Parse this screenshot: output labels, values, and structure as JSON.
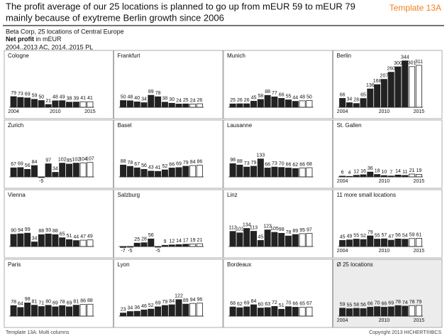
{
  "title": "The profit average of our 25 locations is planned to go up from mEUR 59 to mEUR 79 mainly because of exytreme Berlin growth since 2006",
  "template": "Template 13A",
  "company": "Beta Corp, 25 locations of Central Europe",
  "measure": "Net profit",
  "unit": "in mEUR",
  "period": "2004..2013 AC, 2014..2015 PL",
  "footer_left": "Template 13A: Multi columns",
  "footer_right": "Copyright 2013 HICHERT®IBCS",
  "chart_data": [
    {
      "type": "bar",
      "title": "Cologne",
      "categories": [
        "2004",
        null,
        null,
        null,
        null,
        null,
        "2010",
        null,
        null,
        null,
        null,
        "2015"
      ],
      "values": [
        79,
        73,
        69,
        59,
        50,
        21,
        48,
        49,
        38,
        39,
        41,
        41
      ],
      "colors": [
        "#222",
        "#222",
        "#222",
        "#222",
        "#222",
        "#222",
        "#222",
        "#222",
        "#222",
        "#222",
        "#fff",
        "#fff"
      ]
    },
    {
      "type": "bar",
      "title": "Frankfurt",
      "categories": [
        null,
        null,
        null,
        null,
        null,
        null,
        null,
        null,
        null,
        null,
        null,
        null
      ],
      "values": [
        50,
        48,
        40,
        34,
        89,
        78,
        38,
        30,
        24,
        25,
        24,
        26
      ],
      "colors": [
        "#222",
        "#222",
        "#222",
        "#222",
        "#222",
        "#222",
        "#222",
        "#222",
        "#222",
        "#222",
        "#fff",
        "#fff"
      ]
    },
    {
      "type": "bar",
      "title": "Munich",
      "categories": [
        null,
        null,
        null,
        null,
        null,
        null,
        null,
        null,
        null,
        null,
        null,
        null
      ],
      "values": [
        25,
        26,
        26,
        45,
        58,
        88,
        77,
        66,
        55,
        44,
        48,
        50
      ],
      "colors": [
        "#222",
        "#222",
        "#222",
        "#222",
        "#222",
        "#222",
        "#222",
        "#222",
        "#222",
        "#222",
        "#fff",
        "#fff"
      ]
    },
    {
      "type": "bar",
      "title": "Berlin",
      "categories": [
        "2004",
        null,
        null,
        null,
        null,
        null,
        "2010",
        null,
        null,
        null,
        null,
        "2015"
      ],
      "values": [
        66,
        34,
        28,
        65,
        136,
        168,
        207,
        260,
        300,
        344,
        301,
        311
      ],
      "colors": [
        "#222",
        "#222",
        "#222",
        "#222",
        "#222",
        "#222",
        "#222",
        "#222",
        "#222",
        "#222",
        "#fff",
        "#fff"
      ]
    },
    {
      "type": "bar",
      "title": "Zurich",
      "categories": [
        null,
        null,
        null,
        null,
        null,
        null,
        null,
        null,
        null,
        null,
        null,
        null
      ],
      "values": [
        67,
        69,
        56,
        84,
        -5,
        97,
        34,
        102,
        95,
        102,
        104,
        107
      ],
      "colors": [
        "#222",
        "#222",
        "#222",
        "#222",
        "#222",
        "#222",
        "#222",
        "#222",
        "#222",
        "#222",
        "#fff",
        "#fff"
      ]
    },
    {
      "type": "bar",
      "title": "Basel",
      "categories": [
        null,
        null,
        null,
        null,
        null,
        null,
        null,
        null,
        null,
        null,
        null,
        null
      ],
      "values": [
        88,
        78,
        67,
        56,
        43,
        41,
        52,
        66,
        69,
        79,
        84,
        86
      ],
      "colors": [
        "#222",
        "#222",
        "#222",
        "#222",
        "#222",
        "#222",
        "#222",
        "#222",
        "#222",
        "#222",
        "#fff",
        "#fff"
      ]
    },
    {
      "type": "bar",
      "title": "Lausanne",
      "categories": [
        null,
        null,
        null,
        null,
        null,
        null,
        null,
        null,
        null,
        null,
        null,
        null
      ],
      "values": [
        98,
        88,
        73,
        79,
        133,
        66,
        73,
        70,
        66,
        62,
        66,
        68
      ],
      "colors": [
        "#222",
        "#222",
        "#222",
        "#222",
        "#222",
        "#222",
        "#222",
        "#222",
        "#222",
        "#222",
        "#fff",
        "#fff"
      ]
    },
    {
      "type": "bar",
      "title": "St. Gallen",
      "categories": [
        "2004",
        null,
        null,
        null,
        null,
        null,
        "2010",
        null,
        null,
        null,
        null,
        "2015"
      ],
      "values": [
        6,
        4,
        12,
        16,
        36,
        18,
        10,
        7,
        14,
        11,
        21,
        19
      ],
      "colors": [
        "#222",
        "#222",
        "#222",
        "#222",
        "#222",
        "#222",
        "#222",
        "#222",
        "#222",
        "#222",
        "#fff",
        "#fff"
      ]
    },
    {
      "type": "bar",
      "title": "Vienna",
      "categories": [
        null,
        null,
        null,
        null,
        null,
        null,
        null,
        null,
        null,
        null,
        null,
        null
      ],
      "values": [
        90,
        94,
        99,
        34,
        88,
        93,
        88,
        65,
        51,
        44,
        47,
        49
      ],
      "colors": [
        "#222",
        "#222",
        "#222",
        "#222",
        "#222",
        "#222",
        "#222",
        "#222",
        "#222",
        "#222",
        "#fff",
        "#fff"
      ]
    },
    {
      "type": "bar",
      "title": "Salzburg",
      "categories": [
        null,
        null,
        null,
        null,
        null,
        null,
        null,
        null,
        null,
        null,
        null,
        null
      ],
      "values": [
        -7,
        -5,
        25,
        28,
        56,
        -5,
        9,
        12,
        14,
        17,
        19,
        21
      ],
      "colors": [
        "#222",
        "#222",
        "#222",
        "#222",
        "#222",
        "#222",
        "#222",
        "#222",
        "#222",
        "#222",
        "#fff",
        "#fff"
      ]
    },
    {
      "type": "bar",
      "title": "Linz",
      "categories": [
        null,
        null,
        null,
        null,
        null,
        null,
        null,
        null,
        null,
        null,
        null,
        null
      ],
      "values": [
        112,
        101,
        134,
        113,
        45,
        123,
        105,
        98,
        78,
        89,
        95,
        97
      ],
      "colors": [
        "#222",
        "#222",
        "#222",
        "#222",
        "#222",
        "#222",
        "#222",
        "#222",
        "#222",
        "#222",
        "#fff",
        "#fff"
      ]
    },
    {
      "type": "bar",
      "title": "11 more small locations",
      "categories": [
        "2004",
        null,
        null,
        null,
        null,
        null,
        "2010",
        null,
        null,
        null,
        null,
        "2015"
      ],
      "values": [
        45,
        49,
        55,
        52,
        79,
        55,
        57,
        47,
        56,
        54,
        59,
        61
      ],
      "colors": [
        "#222",
        "#222",
        "#222",
        "#222",
        "#222",
        "#222",
        "#222",
        "#222",
        "#222",
        "#222",
        "#fff",
        "#fff"
      ]
    },
    {
      "type": "bar",
      "title": "Paris",
      "categories": [
        null,
        null,
        null,
        null,
        null,
        null,
        null,
        null,
        null,
        null,
        null,
        null
      ],
      "values": [
        78,
        64,
        98,
        81,
        71,
        80,
        69,
        78,
        69,
        81,
        86,
        88
      ],
      "colors": [
        "#222",
        "#222",
        "#222",
        "#222",
        "#222",
        "#222",
        "#222",
        "#222",
        "#222",
        "#222",
        "#fff",
        "#fff"
      ]
    },
    {
      "type": "bar",
      "title": "Lyon",
      "categories": [
        null,
        null,
        null,
        null,
        null,
        null,
        null,
        null,
        null,
        null,
        null,
        null
      ],
      "values": [
        23,
        34,
        36,
        46,
        52,
        69,
        79,
        84,
        122,
        89,
        94,
        96
      ],
      "colors": [
        "#222",
        "#222",
        "#222",
        "#222",
        "#222",
        "#222",
        "#222",
        "#222",
        "#222",
        "#222",
        "#fff",
        "#fff"
      ]
    },
    {
      "type": "bar",
      "title": "Bordeaux",
      "categories": [
        null,
        null,
        null,
        null,
        null,
        null,
        null,
        null,
        null,
        null,
        null,
        null
      ],
      "values": [
        68,
        62,
        69,
        84,
        60,
        63,
        72,
        51,
        70,
        66,
        65,
        67
      ],
      "colors": [
        "#222",
        "#222",
        "#222",
        "#222",
        "#222",
        "#222",
        "#222",
        "#222",
        "#222",
        "#222",
        "#fff",
        "#fff"
      ]
    },
    {
      "type": "bar",
      "title": "Ø 25 locations",
      "categories": [
        "2004",
        null,
        null,
        null,
        null,
        null,
        "2010",
        null,
        null,
        null,
        null,
        "2015"
      ],
      "values": [
        59,
        55,
        58,
        56,
        66,
        70,
        66,
        69,
        78,
        74,
        78,
        79
      ],
      "colors": [
        "#222",
        "#222",
        "#222",
        "#222",
        "#222",
        "#222",
        "#222",
        "#222",
        "#222",
        "#222",
        "#fff",
        "#fff"
      ],
      "background": "#ececec"
    }
  ]
}
